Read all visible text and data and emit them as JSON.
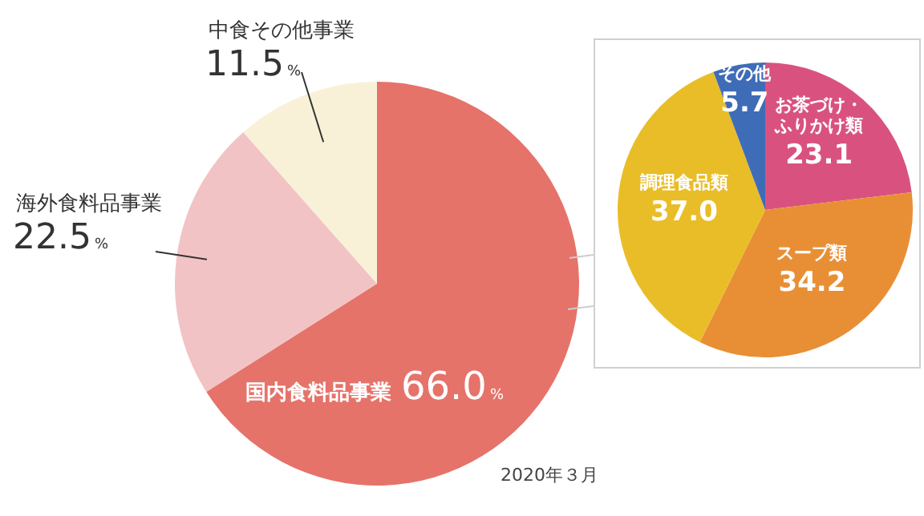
{
  "chart_data": [
    {
      "type": "pie",
      "categories": [
        "国内食料品事業",
        "海外食料品事業",
        "中食その他事業"
      ],
      "values": [
        66.0,
        22.5,
        11.5
      ],
      "colors": [
        "#e5736a",
        "#f2c3c4",
        "#f8f1d8"
      ],
      "value_labels": [
        "66.0%",
        "22.5%",
        "11.5%"
      ],
      "annotations": [
        "2020年３月"
      ],
      "legend": false
    },
    {
      "type": "pie",
      "categories": [
        "お茶づけ・ふりかけ類",
        "スープ類",
        "調理食品類",
        "その他"
      ],
      "values": [
        23.1,
        34.2,
        37.0,
        5.7
      ],
      "colors": [
        "#d9527f",
        "#e88f35",
        "#e9bd27",
        "#3f6cb7"
      ],
      "value_labels": [
        "23.1",
        "34.2",
        "37.0",
        "5.7"
      ],
      "legend": false
    }
  ]
}
